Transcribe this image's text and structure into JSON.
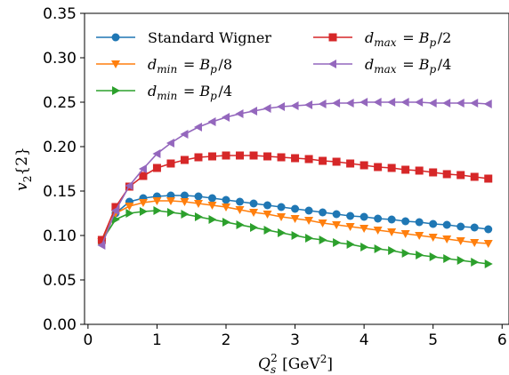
{
  "chart_data": {
    "type": "line",
    "xlabel": "Q_s^2 [GeV^2]",
    "ylabel": "v_2{2}",
    "xlim": [
      -0.05,
      6.1
    ],
    "ylim": [
      0.0,
      0.35
    ],
    "xticks": [
      0,
      1,
      2,
      3,
      4,
      5,
      6
    ],
    "yticks": [
      0.0,
      0.05,
      0.1,
      0.15,
      0.2,
      0.25,
      0.3,
      0.35
    ],
    "xtick_labels": [
      "0",
      "1",
      "2",
      "3",
      "4",
      "5",
      "6"
    ],
    "ytick_labels": [
      "0.00",
      "0.05",
      "0.10",
      "0.15",
      "0.20",
      "0.25",
      "0.30",
      "0.35"
    ],
    "grid": false,
    "legend_placement": "top",
    "x": [
      0.2,
      0.4,
      0.6,
      0.8,
      1.0,
      1.2,
      1.4,
      1.6,
      1.8,
      2.0,
      2.2,
      2.4,
      2.6,
      2.8,
      3.0,
      3.2,
      3.4,
      3.6,
      3.8,
      4.0,
      4.2,
      4.4,
      4.6,
      4.8,
      5.0,
      5.2,
      5.4,
      5.6,
      5.8
    ],
    "series": [
      {
        "name": "Standard Wigner",
        "color": "#1f77b4",
        "marker": "circle",
        "values": [
          0.094,
          0.125,
          0.138,
          0.142,
          0.144,
          0.145,
          0.145,
          0.144,
          0.142,
          0.14,
          0.138,
          0.136,
          0.134,
          0.132,
          0.13,
          0.128,
          0.126,
          0.124,
          0.122,
          0.121,
          0.119,
          0.118,
          0.116,
          0.115,
          0.113,
          0.112,
          0.11,
          0.109,
          0.107
        ]
      },
      {
        "name": "d_min = B_p/8",
        "color": "#ff7f0e",
        "marker": "triangle-down",
        "values": [
          0.093,
          0.125,
          0.133,
          0.137,
          0.139,
          0.139,
          0.138,
          0.136,
          0.134,
          0.132,
          0.129,
          0.126,
          0.124,
          0.121,
          0.119,
          0.117,
          0.114,
          0.112,
          0.11,
          0.108,
          0.106,
          0.104,
          0.102,
          0.1,
          0.098,
          0.096,
          0.094,
          0.092,
          0.091
        ]
      },
      {
        "name": "d_min = B_p/4",
        "color": "#2ca02c",
        "marker": "triangle-right",
        "values": [
          0.094,
          0.118,
          0.125,
          0.127,
          0.128,
          0.126,
          0.124,
          0.121,
          0.118,
          0.115,
          0.112,
          0.109,
          0.106,
          0.103,
          0.1,
          0.097,
          0.095,
          0.092,
          0.09,
          0.087,
          0.085,
          0.083,
          0.08,
          0.078,
          0.076,
          0.074,
          0.072,
          0.07,
          0.068
        ]
      },
      {
        "name": "d_max = B_p/2",
        "color": "#d62728",
        "marker": "square",
        "values": [
          0.095,
          0.132,
          0.155,
          0.167,
          0.176,
          0.181,
          0.185,
          0.188,
          0.189,
          0.19,
          0.19,
          0.19,
          0.189,
          0.188,
          0.187,
          0.186,
          0.184,
          0.183,
          0.181,
          0.179,
          0.177,
          0.176,
          0.174,
          0.173,
          0.171,
          0.169,
          0.168,
          0.166,
          0.164
        ]
      },
      {
        "name": "d_max = B_p/4",
        "color": "#9467bd",
        "marker": "triangle-left",
        "values": [
          0.089,
          0.128,
          0.156,
          0.175,
          0.192,
          0.204,
          0.214,
          0.222,
          0.228,
          0.233,
          0.237,
          0.24,
          0.243,
          0.245,
          0.246,
          0.247,
          0.248,
          0.249,
          0.249,
          0.25,
          0.25,
          0.25,
          0.25,
          0.25,
          0.249,
          0.249,
          0.249,
          0.249,
          0.248
        ]
      }
    ]
  }
}
